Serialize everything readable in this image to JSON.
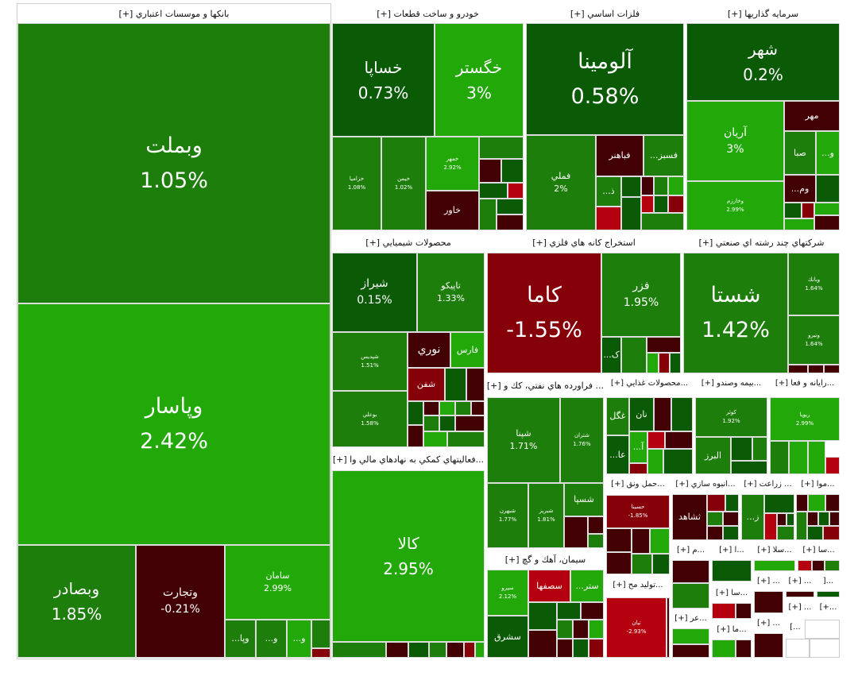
{
  "colors": {
    "strong_green": "#0b5a06",
    "green": "#1d7e0b",
    "bright_green": "#23a80a",
    "dark_red": "#430004",
    "red": "#86000a",
    "bright_red": "#b5000f"
  },
  "sectors": {
    "banks": {
      "title": "بانکها و موسسات اعتباري [+]",
      "tiles": [
        {
          "name": "وبملت",
          "pct": "1.05%"
        },
        {
          "name": "وپاسار",
          "pct": "2.42%"
        },
        {
          "name": "وبصادر",
          "pct": "1.85%"
        },
        {
          "name": "وتجارت",
          "pct": "-0.21%"
        },
        {
          "name": "سامان",
          "pct": "2.99%"
        },
        {
          "name": "...وپا"
        },
        {
          "name": "...و"
        },
        {
          "name": "...و"
        }
      ]
    },
    "auto": {
      "title": "خودرو و ساخت قطعات [+]",
      "tiles": [
        {
          "name": "خساپا",
          "pct": "0.73%"
        },
        {
          "name": "خگستر",
          "pct": "3%"
        },
        {
          "name": "خزامیا",
          "pct": "1.08%"
        },
        {
          "name": "خیمن",
          "pct": "1.02%"
        },
        {
          "name": "خمهر",
          "pct": "2.92%"
        },
        {
          "name": "خاور"
        }
      ]
    },
    "metals": {
      "title": "فلزات اساسي [+]",
      "tiles": [
        {
          "name": "آلومينا",
          "pct": "0.58%"
        },
        {
          "name": "فملي",
          "pct": "2%"
        },
        {
          "name": "فباهنر"
        },
        {
          "name": "...فسبز"
        },
        {
          "name": "...ذ"
        }
      ]
    },
    "investment": {
      "title": "سرمايه گذاريها [+]",
      "tiles": [
        {
          "name": "شهر",
          "pct": "0.2%"
        },
        {
          "name": "آريان",
          "pct": "3%"
        },
        {
          "name": "وخارزم",
          "pct": "2.99%"
        },
        {
          "name": "مهر"
        },
        {
          "name": "صبا"
        },
        {
          "name": "...و"
        },
        {
          "name": "...وم"
        }
      ]
    },
    "chemical": {
      "title": "محصولات شيميايي [+]",
      "tiles": [
        {
          "name": "شيراز",
          "pct": "0.15%"
        },
        {
          "name": "تاپيکو",
          "pct": "1.33%"
        },
        {
          "name": "شپديس",
          "pct": "1.51%"
        },
        {
          "name": "بوعلي",
          "pct": "1.58%"
        },
        {
          "name": "نوري"
        },
        {
          "name": "فارس"
        },
        {
          "name": "شفن"
        }
      ]
    },
    "mining": {
      "title": "استخراج کانه هاي فلزي [+]",
      "tiles": [
        {
          "name": "کاما",
          "pct": "-1.55%"
        },
        {
          "name": "فزر",
          "pct": "1.95%"
        },
        {
          "name": "...ک"
        }
      ]
    },
    "multi": {
      "title": "شرکتهاي چند رشته اي صنعتي [+]",
      "tiles": [
        {
          "name": "شستا",
          "pct": "1.42%"
        },
        {
          "name": "وبانك",
          "pct": "1.64%"
        },
        {
          "name": "ونیرو",
          "pct": "1.64%"
        }
      ]
    },
    "financial": {
      "title": "...فعاليتهاي کمکي به نهادهاي مالي وا [+]",
      "tiles": [
        {
          "name": "کالا",
          "pct": "2.95%"
        }
      ]
    },
    "oil": {
      "title": "... فراورده هاي نفتي، كك و [+]",
      "tiles": [
        {
          "name": "شپنا",
          "pct": "1.71%"
        },
        {
          "name": "شتران",
          "pct": "1.76%"
        },
        {
          "name": "شبهرن",
          "pct": "1.77%"
        },
        {
          "name": "شبریز",
          "pct": "1.81%"
        },
        {
          "name": "شسپا"
        }
      ]
    },
    "food": {
      "title": "...محصولات غذايي [+]",
      "tiles": [
        {
          "name": "غگل"
        },
        {
          "name": "نان"
        },
        {
          "name": "...آ"
        },
        {
          "name": "...عا"
        }
      ]
    },
    "insurance": {
      "title": "...بيمه وصندو [+]",
      "tiles": [
        {
          "name": "کوثر",
          "pct": "1.92%"
        },
        {
          "name": "البرز"
        }
      ]
    },
    "computer": {
      "title": "...رايانه و فعا [+]",
      "tiles": [
        {
          "name": "ريويا",
          "pct": "2.99%"
        }
      ]
    },
    "cement": {
      "title": "سيمان، آهك و گچ [+]",
      "tiles": [
        {
          "name": "سپرو",
          "pct": "2.12%"
        },
        {
          "name": "سصفها"
        },
        {
          "name": "...ستر"
        },
        {
          "name": "سشرق"
        }
      ]
    },
    "transport": {
      "title": "...حمل ونق [+]",
      "tiles": [
        {
          "name": "حسینا",
          "pct": "-1.85%"
        }
      ]
    },
    "housing": {
      "title": "...انبوه سازي [+]",
      "tiles": [
        {
          "name": "ثشاهد"
        }
      ]
    },
    "agri": {
      "title": "... زراعت [+]",
      "tiles": [
        {
          "name": "...ز"
        }
      ]
    },
    "mowa": {
      "title": "...موا [+]"
    },
    "production": {
      "title": "...توليد مح [+]",
      "tiles": [
        {
          "name": "تيان",
          "pct": "-2.93%"
        }
      ]
    },
    "small": [
      "...م [+]",
      "...ا [+]",
      "...سلا [+]",
      "...سا [+]",
      "...سا [+]",
      "... [+]",
      "... [+]",
      "...[",
      "...عر [+]",
      "...ما [+]",
      "... [+]",
      "... [+]",
      "...+]",
      "...]"
    ]
  }
}
